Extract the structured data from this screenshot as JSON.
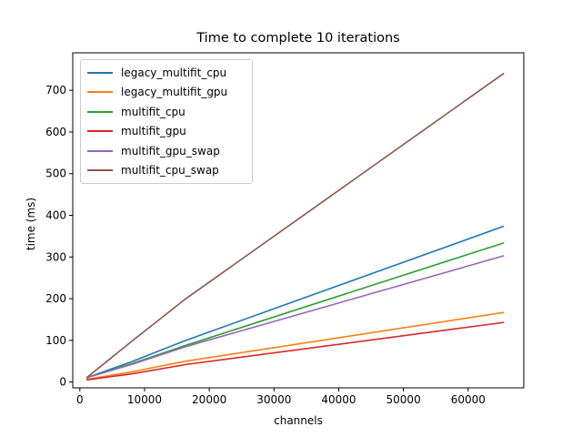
{
  "chart_data": {
    "type": "line",
    "title": "Time to complete 10 iterations",
    "xlabel": "channels",
    "ylabel": "time (ms)",
    "xlim": [
      -1100,
      68600
    ],
    "ylim": [
      -14,
      790
    ],
    "xticks": [
      0,
      10000,
      20000,
      30000,
      40000,
      50000,
      60000
    ],
    "yticks": [
      0,
      100,
      200,
      300,
      400,
      500,
      600,
      700
    ],
    "legend_position": "upper-left",
    "grid": false,
    "x": [
      1024,
      8192,
      16384,
      65536
    ],
    "series": [
      {
        "name": "legacy_multifit_cpu",
        "color": "#1f77b4",
        "values": [
          10,
          50,
          100,
          374
        ]
      },
      {
        "name": "legacy_multifit_gpu",
        "color": "#ff7f0e",
        "values": [
          6,
          25,
          50,
          167
        ]
      },
      {
        "name": "multifit_cpu",
        "color": "#2ca02c",
        "values": [
          10,
          45,
          88,
          334
        ]
      },
      {
        "name": "multifit_gpu",
        "color": "#d62728",
        "values": [
          5,
          20,
          42,
          143
        ]
      },
      {
        "name": "multifit_gpu_swap",
        "color": "#9467bd",
        "values": [
          10,
          43,
          85,
          303
        ]
      },
      {
        "name": "multifit_cpu_swap",
        "color": "#8c564b",
        "values": [
          10,
          100,
          200,
          741
        ]
      }
    ]
  }
}
